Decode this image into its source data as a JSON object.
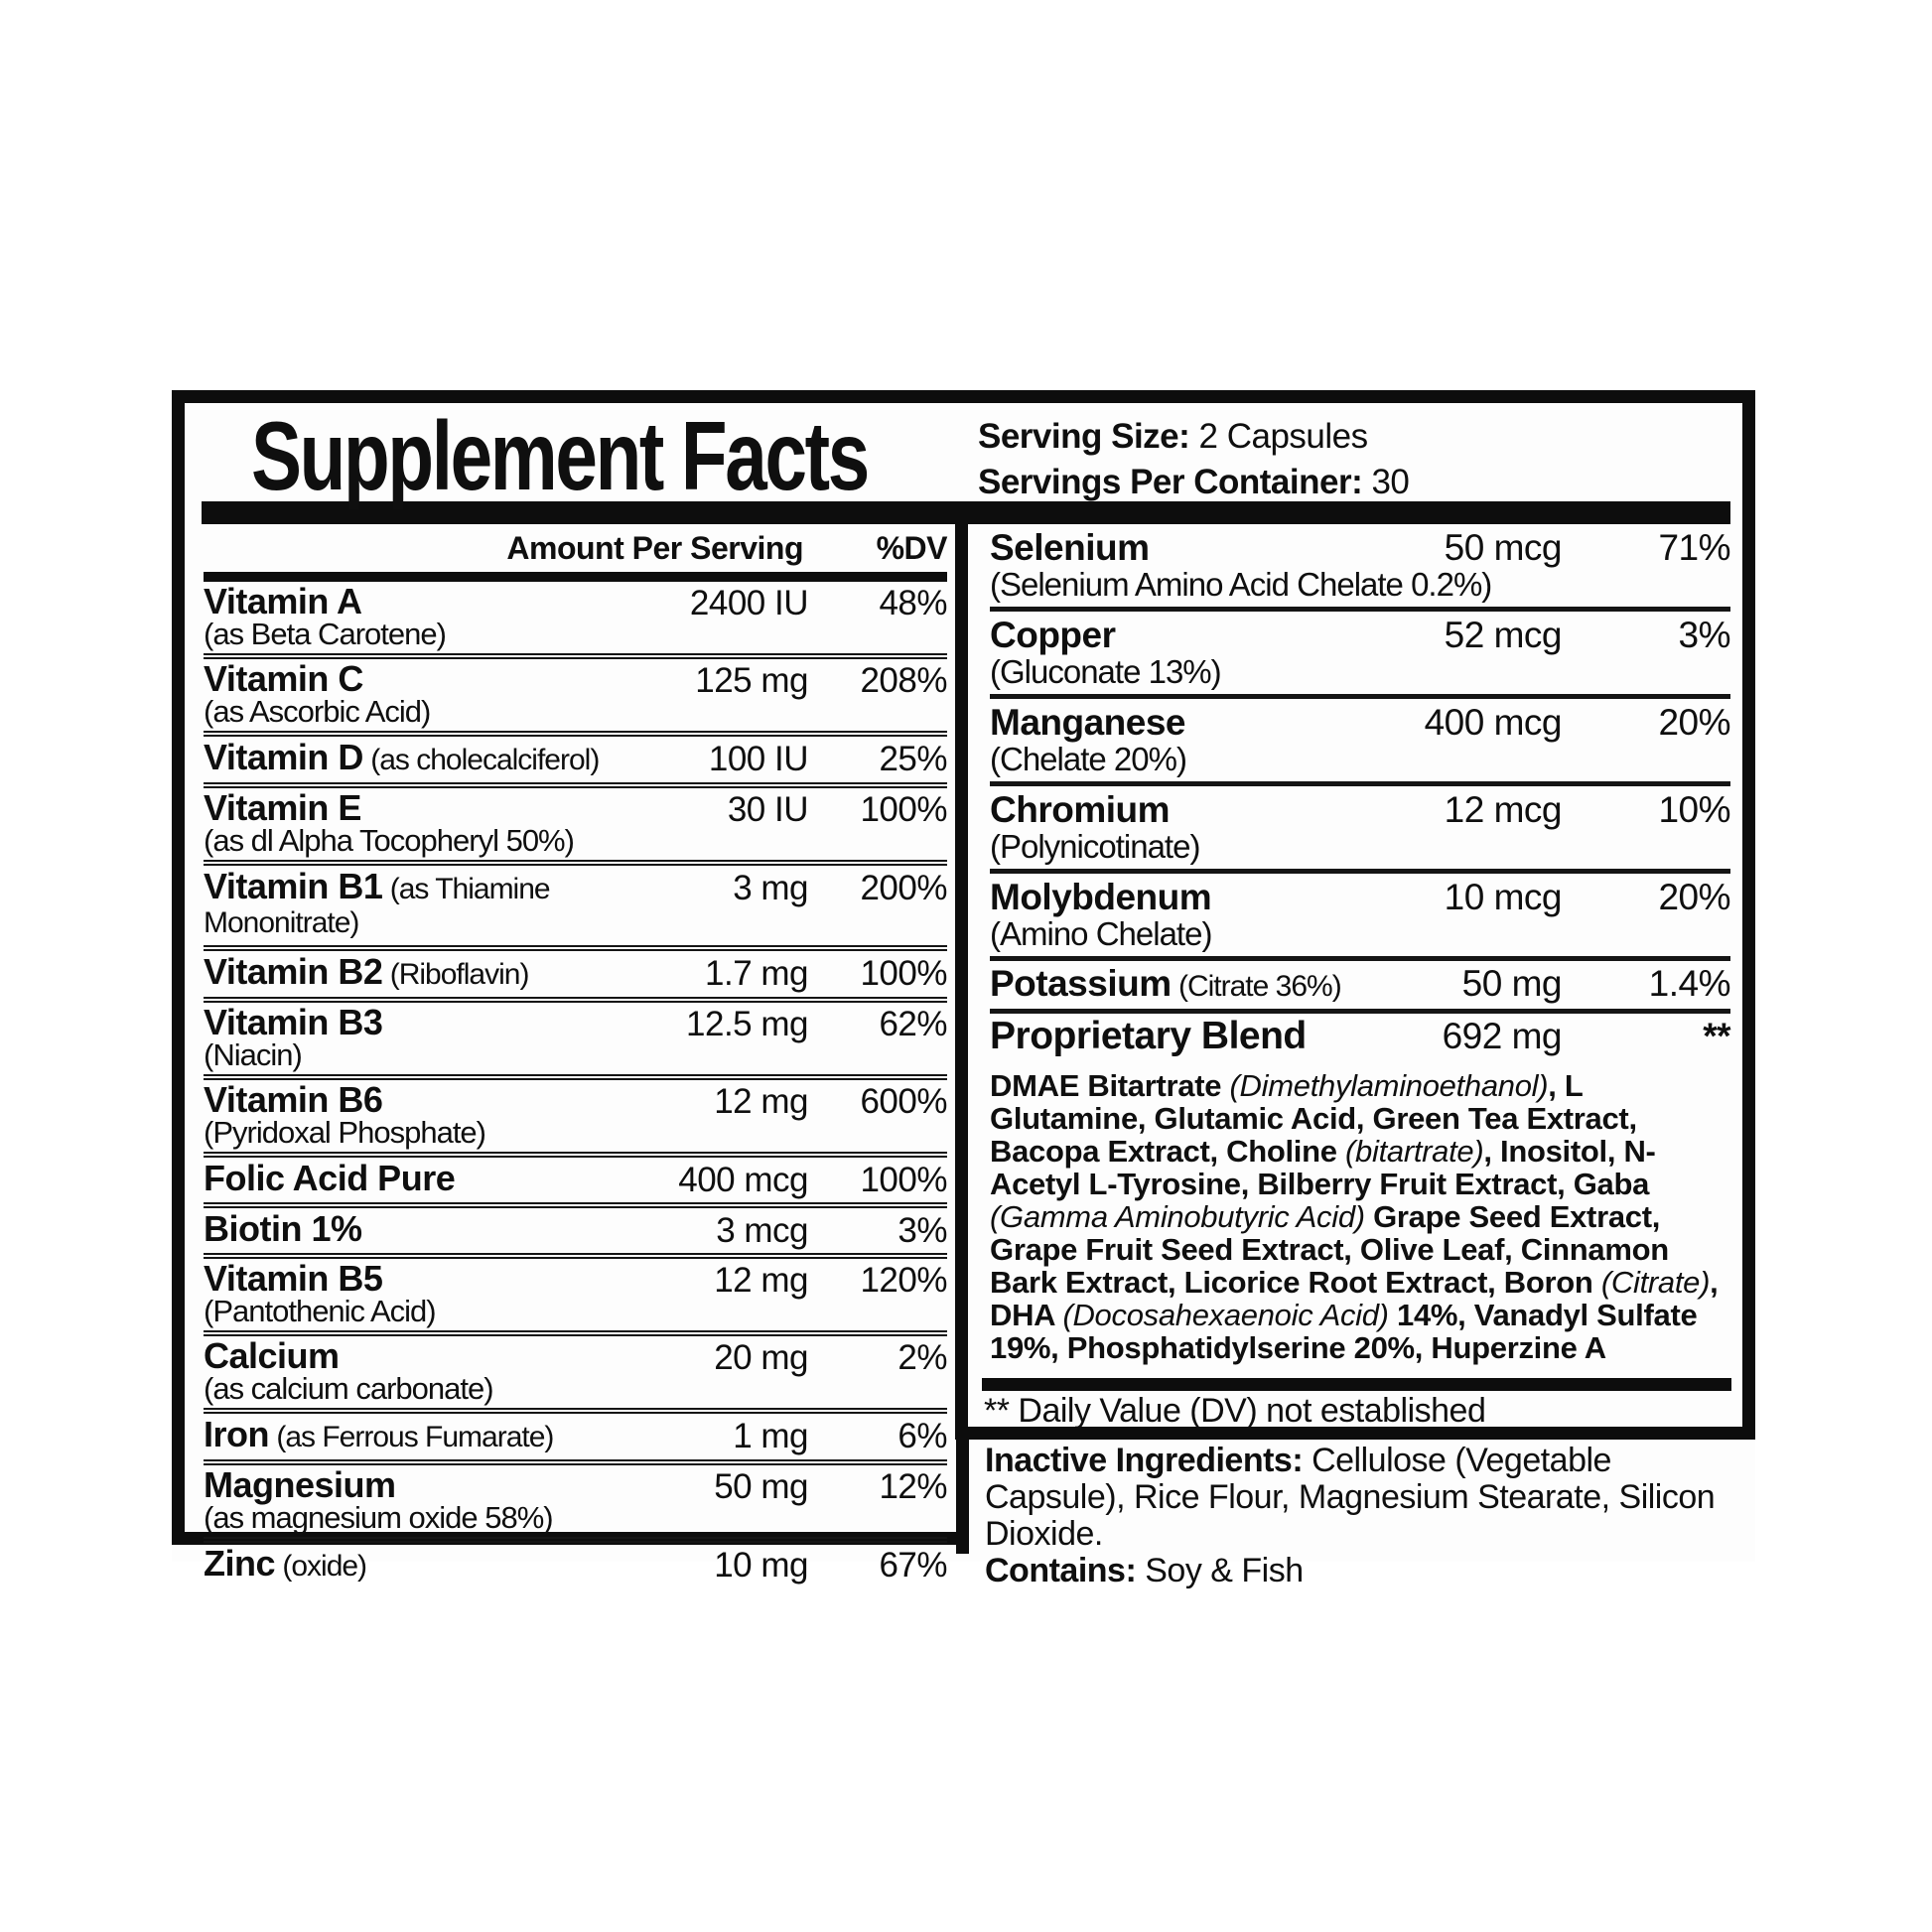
{
  "colors": {
    "ink": "#0f0f0f",
    "paper": "#fdfdfd"
  },
  "title": "Supplement Facts",
  "serving": {
    "size_label": "Serving Size:",
    "size_value": "2 Capsules",
    "container_label": "Servings Per Container:",
    "container_value": "30"
  },
  "left_table": {
    "headers": {
      "amount": "Amount Per Serving",
      "dv": "%DV"
    },
    "rows": [
      {
        "name": "Vitamin A",
        "sub": "(as Beta Carotene)",
        "amount": "2400 IU",
        "dv": "48%"
      },
      {
        "name": "Vitamin C",
        "sub": "(as Ascorbic Acid)",
        "amount": "125 mg",
        "dv": "208%"
      },
      {
        "name": "Vitamin D",
        "inline_sub": "(as cholecalciferol)",
        "amount": "100 IU",
        "dv": "25%"
      },
      {
        "name": "Vitamin E",
        "sub": "(as dl Alpha Tocopheryl 50%)",
        "amount": "30 IU",
        "dv": "100%"
      },
      {
        "name": "Vitamin B1",
        "inline_sub": "(as Thiamine Mononitrate)",
        "amount": "3 mg",
        "dv": "200%"
      },
      {
        "name": "Vitamin B2",
        "inline_sub": "(Riboflavin)",
        "amount": "1.7 mg",
        "dv": "100%"
      },
      {
        "name": "Vitamin B3",
        "sub": "(Niacin)",
        "amount": "12.5 mg",
        "dv": "62%"
      },
      {
        "name": "Vitamin B6",
        "sub": "(Pyridoxal Phosphate)",
        "amount": "12 mg",
        "dv": "600%"
      },
      {
        "name": "Folic Acid Pure",
        "amount": "400 mcg",
        "dv": "100%"
      },
      {
        "name": "Biotin 1%",
        "amount": "3 mcg",
        "dv": "3%"
      },
      {
        "name": "Vitamin B5",
        "sub": "(Pantothenic Acid)",
        "amount": "12 mg",
        "dv": "120%"
      },
      {
        "name": "Calcium",
        "sub": "(as calcium carbonate)",
        "amount": "20 mg",
        "dv": "2%"
      },
      {
        "name": "Iron",
        "inline_sub": "(as Ferrous Fumarate)",
        "amount": "1 mg",
        "dv": "6%"
      },
      {
        "name": "Magnesium",
        "sub": "(as magnesium oxide 58%)",
        "amount": "50 mg",
        "dv": "12%"
      },
      {
        "name": "Zinc",
        "inline_sub": "(oxide)",
        "amount": "10 mg",
        "dv": "67%"
      }
    ]
  },
  "right_table": {
    "rows": [
      {
        "name": "Selenium",
        "sub": "(Selenium Amino Acid Chelate 0.2%)",
        "amount": "50 mcg",
        "dv": "71%"
      },
      {
        "name": "Copper",
        "sub": "(Gluconate 13%)",
        "amount": "52 mcg",
        "dv": "3%"
      },
      {
        "name": "Manganese",
        "sub": "(Chelate 20%)",
        "amount": "400 mcg",
        "dv": "20%"
      },
      {
        "name": "Chromium",
        "sub": "(Polynicotinate)",
        "amount": "12 mcg",
        "dv": "10%"
      },
      {
        "name": "Molybdenum",
        "sub": "(Amino Chelate)",
        "amount": "10 mcg",
        "dv": "20%"
      },
      {
        "name": "Potassium",
        "inline_sub": "(Citrate 36%)",
        "amount": "50 mg",
        "dv": "1.4%"
      },
      {
        "name": "Proprietary Blend",
        "amount": "692 mg",
        "dv": "**",
        "proprietary": true
      }
    ],
    "blend_segments": [
      {
        "style": "b",
        "text": "DMAE Bitartrate "
      },
      {
        "style": "i",
        "text": "(Dimethylaminoethanol)"
      },
      {
        "style": "b",
        "text": ", L Glutamine, Glutamic Acid, Green Tea Extract, Bacopa Extract, Choline "
      },
      {
        "style": "i",
        "text": "(bitartrate)"
      },
      {
        "style": "b",
        "text": ", Inositol, N-Acetyl L-Tyrosine, Bilberry Fruit Extract, Gaba "
      },
      {
        "style": "i",
        "text": "(Gamma Aminobutyric Acid)"
      },
      {
        "style": "b",
        "text": " Grape Seed Extract, Grape Fruit Seed Extract, Olive Leaf, Cinnamon Bark Extract, Licorice Root Extract, Boron "
      },
      {
        "style": "i",
        "text": "(Citrate)"
      },
      {
        "style": "b",
        "text": ", DHA "
      },
      {
        "style": "i",
        "text": "(Docosahexaenoic Acid)"
      },
      {
        "style": "b",
        "text": " 14%, Vanadyl Sulfate 19%, Phosphatidylserine 20%, Huperzine A"
      }
    ]
  },
  "footnote": "** Daily Value (DV) not established",
  "inactive": {
    "label": "Inactive Ingredients:",
    "text": " Cellulose (Vegetable Capsule), Rice Flour, Magnesium Stearate, Silicon Dioxide.",
    "contains_label": "Contains:",
    "contains_text": " Soy & Fish"
  }
}
